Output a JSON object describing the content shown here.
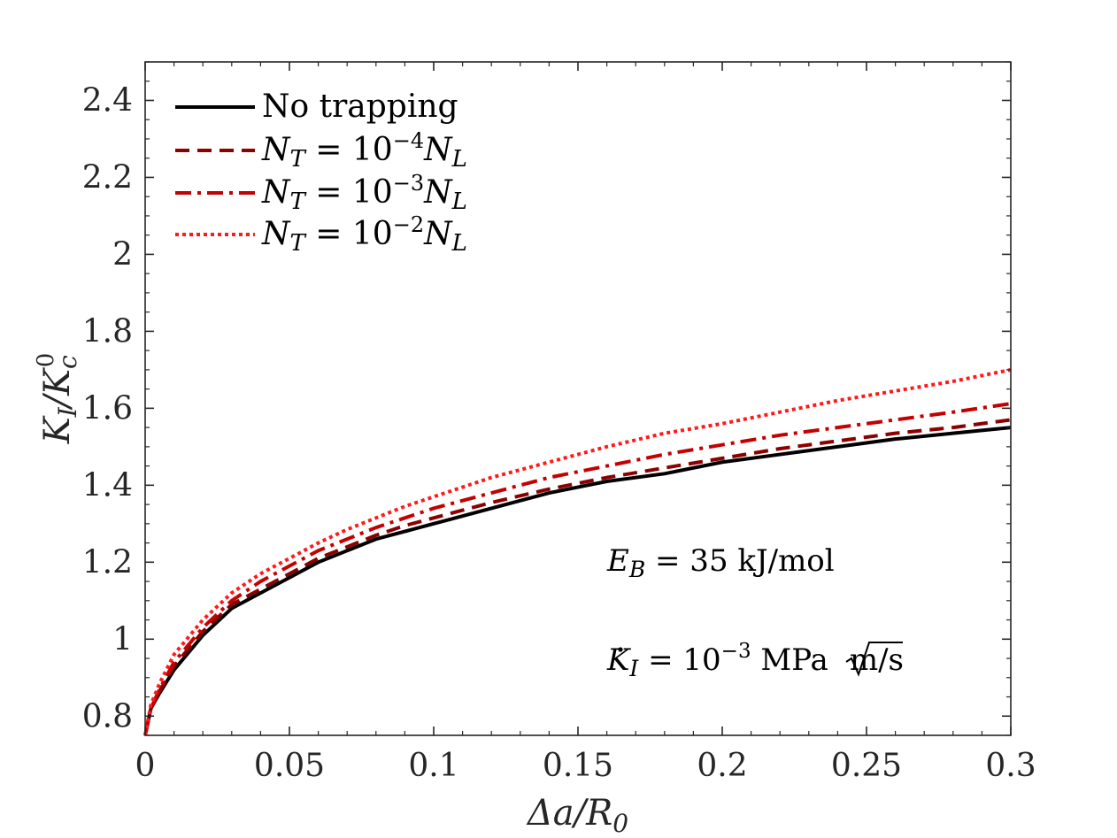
{
  "chart_data": {
    "type": "line",
    "title": "",
    "xlabel": "Δa/R0",
    "ylabel": "KI/Kc0",
    "xlim": [
      0,
      0.3
    ],
    "ylim": [
      0.75,
      2.5
    ],
    "xticks": [
      0,
      0.05,
      0.1,
      0.15,
      0.2,
      0.25,
      0.3
    ],
    "xtick_labels": [
      "0",
      "0.05",
      "0.1",
      "0.15",
      "0.2",
      "0.25",
      "0.3"
    ],
    "yticks": [
      0.8,
      1,
      1.2,
      1.4,
      1.6,
      1.8,
      2,
      2.2,
      2.4
    ],
    "ytick_labels": [
      "0.8",
      "1",
      "1.2",
      "1.4",
      "1.6",
      "1.8",
      "2",
      "2.2",
      "2.4"
    ],
    "grid": false,
    "legend_position": "top-left",
    "x": [
      0.0,
      0.002,
      0.005,
      0.01,
      0.02,
      0.03,
      0.04,
      0.05,
      0.06,
      0.07,
      0.08,
      0.09,
      0.1,
      0.12,
      0.14,
      0.16,
      0.18,
      0.2,
      0.22,
      0.24,
      0.26,
      0.28,
      0.3
    ],
    "series": [
      {
        "name": "No trapping",
        "color": "#000000",
        "style": "solid",
        "values": [
          0.75,
          0.82,
          0.86,
          0.92,
          1.01,
          1.08,
          1.12,
          1.16,
          1.2,
          1.23,
          1.26,
          1.28,
          1.3,
          1.34,
          1.38,
          1.41,
          1.43,
          1.46,
          1.48,
          1.5,
          1.52,
          1.535,
          1.55
        ]
      },
      {
        "name": "NT = 10^-4 NL",
        "color": "#8b0000",
        "style": "dashed",
        "values": [
          0.75,
          0.82,
          0.865,
          0.93,
          1.02,
          1.09,
          1.13,
          1.17,
          1.21,
          1.24,
          1.27,
          1.295,
          1.315,
          1.355,
          1.39,
          1.42,
          1.445,
          1.47,
          1.495,
          1.515,
          1.535,
          1.55,
          1.57
        ]
      },
      {
        "name": "NT = 10^-3 NL",
        "color": "#c40000",
        "style": "dashdot",
        "values": [
          0.75,
          0.82,
          0.87,
          0.94,
          1.03,
          1.1,
          1.15,
          1.19,
          1.23,
          1.26,
          1.29,
          1.315,
          1.34,
          1.38,
          1.42,
          1.45,
          1.48,
          1.505,
          1.53,
          1.55,
          1.57,
          1.59,
          1.612
        ]
      },
      {
        "name": "NT = 10^-2 NL",
        "color": "#ff1a1a",
        "style": "dotted",
        "values": [
          0.75,
          0.83,
          0.885,
          0.96,
          1.05,
          1.12,
          1.17,
          1.21,
          1.25,
          1.285,
          1.315,
          1.345,
          1.37,
          1.42,
          1.46,
          1.5,
          1.535,
          1.56,
          1.59,
          1.62,
          1.645,
          1.67,
          1.7
        ]
      }
    ],
    "annotations": [
      "E_B = 35 kJ/mol",
      "K̇_I = 10^-3 MPa√m/s"
    ]
  },
  "legend": {
    "item1": "No trapping",
    "item2_prefix": "N",
    "item2_sub": "T",
    "item2_mid": " = 10",
    "item2_exp": "−4",
    "item2_tail": "N",
    "item2_tailsub": "L",
    "item3_exp": "−3",
    "item4_exp": "−2"
  },
  "axis": {
    "xlabel_main": "Δa/R",
    "xlabel_sub": "0",
    "ylabel_main": "K",
    "ylabel_sub1": "I",
    "ylabel_mid": "/K",
    "ylabel_sub2": "c",
    "ylabel_sup": "0"
  },
  "annot": {
    "eb_var": "E",
    "eb_sub": "B",
    "eb_rest": " = 35 kJ/mol",
    "k_var": "K",
    "k_sub": "I",
    "k_mid": " = 10",
    "k_exp": "−3",
    "k_unit": " MPa",
    "k_root": "m",
    "k_tail": "/s"
  }
}
